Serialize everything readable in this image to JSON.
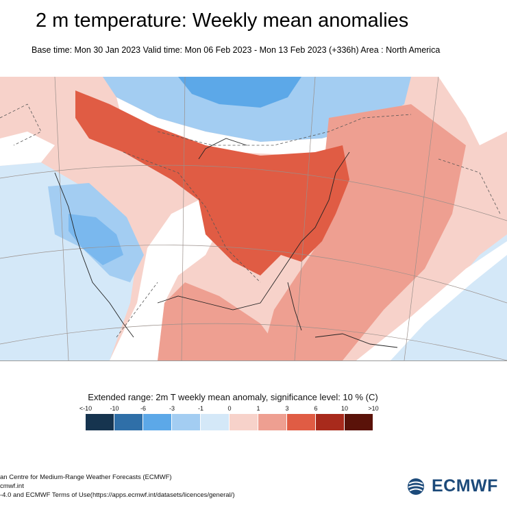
{
  "header": {
    "title": "2 m temperature: Weekly mean anomalies",
    "subtitle": "Base time: Mon 30 Jan 2023 Valid time: Mon 06 Feb 2023 - Mon 13 Feb 2023 (+336h) Area : North America"
  },
  "legend": {
    "title": "Extended range: 2m T weekly mean anomaly, significance level: 10 % (C)",
    "ticks": [
      "<-10",
      "-10",
      "-6",
      "-3",
      "-1",
      "0",
      "1",
      "3",
      "6",
      "10",
      ">10"
    ],
    "colors": [
      "#16344f",
      "#2f6fa8",
      "#5ca8e8",
      "#a3cdf2",
      "#d4e8f8",
      "#f7d2ca",
      "#ee9f91",
      "#e05c44",
      "#a82a1c",
      "#5a1209"
    ]
  },
  "footer": {
    "line1": "an Centre for Medium-Range Weather Forecasts (ECMWF)",
    "line2": "cmwf.int",
    "line3": "-4.0 and ECMWF Terms of Use(https://apps.ecmwf.int/datasets/licences/general/)"
  },
  "logo": {
    "text": "ECMWF"
  }
}
